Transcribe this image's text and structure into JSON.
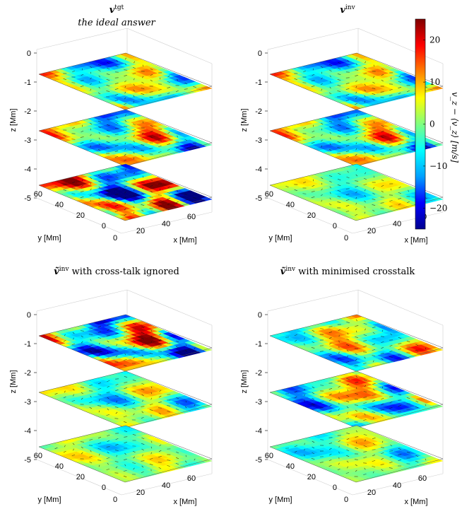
{
  "figure": {
    "panels": [
      {
        "title_main": "v",
        "title_sup": "tgt",
        "subtitle": "the ideal answer",
        "variant": "target"
      },
      {
        "title_main": "v",
        "title_sup": "inv",
        "subtitle": "",
        "variant": "inv"
      },
      {
        "title_main": "ṽ",
        "title_sup": "inv",
        "subtitle": " with cross-talk ignored",
        "variant": "ignored"
      },
      {
        "title_main": "ṽ",
        "title_sup": "inv",
        "subtitle": " with minimised crosstalk",
        "variant": "minimised"
      }
    ],
    "axes": {
      "z_label": "z [Mm]",
      "y_label": "y [Mm]",
      "x_label": "x [Mm]",
      "z_ticks": [
        "0",
        "-1",
        "-2",
        "-3",
        "-4",
        "-5"
      ],
      "y_ticks": [
        "60",
        "40",
        "20",
        "0"
      ],
      "x_ticks": [
        "0",
        "20",
        "40",
        "60"
      ]
    },
    "colorbar": {
      "label": "v_z − ⟨v_z⟩ [m/s]",
      "ticks": [
        "20",
        "10",
        "0",
        "−10",
        "−20"
      ],
      "range": [
        -25,
        25
      ],
      "colors": [
        "#00008f",
        "#0000ff",
        "#00a0ff",
        "#00ffff",
        "#80ff80",
        "#ffff00",
        "#ff8000",
        "#ff0000",
        "#800000"
      ]
    }
  }
}
